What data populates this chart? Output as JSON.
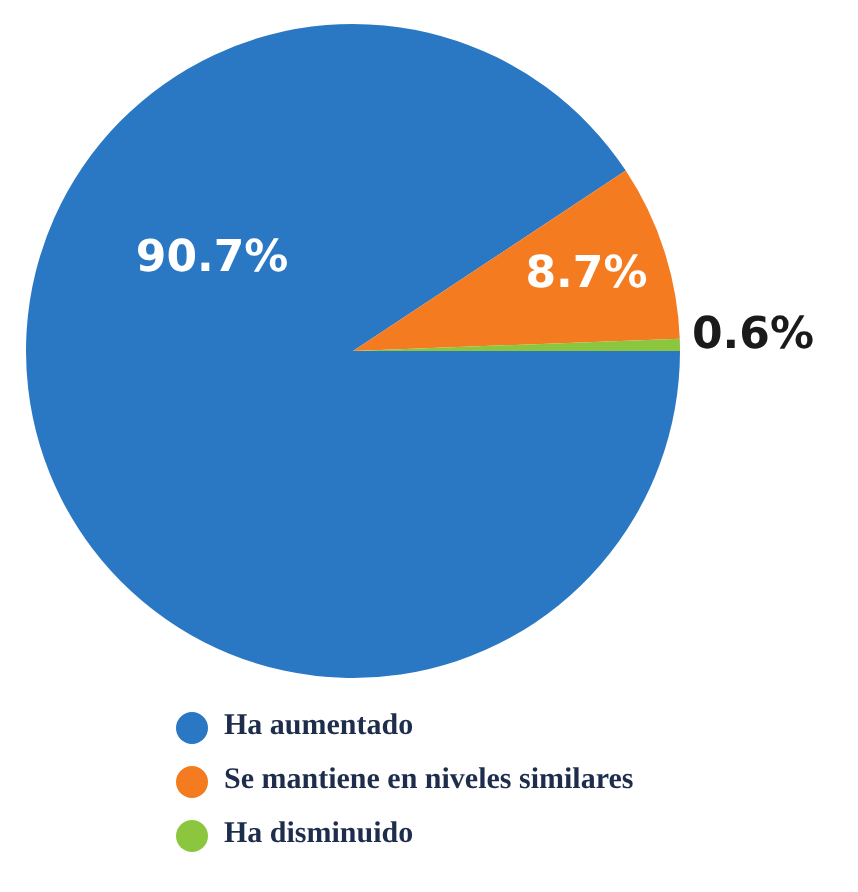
{
  "chart_data": {
    "type": "pie",
    "categories": [
      "Ha aumentado",
      "Se mantiene en niveles similares",
      "Ha disminuido"
    ],
    "values": [
      90.7,
      8.7,
      0.6
    ],
    "colors": [
      "#2a78c4",
      "#f47b20",
      "#8cc63f"
    ],
    "value_labels": [
      "90.7%",
      "8.7%",
      "0.6%"
    ],
    "legend": "bottom"
  }
}
